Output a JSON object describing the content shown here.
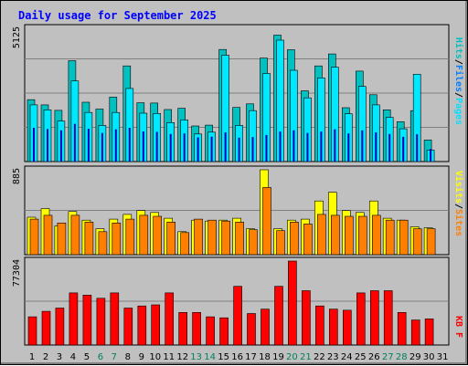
{
  "chart_data": {
    "type": "bar",
    "title": "Daily usage for September 2025",
    "days": [
      "1",
      "2",
      "3",
      "4",
      "5",
      "6",
      "7",
      "8",
      "9",
      "10",
      "11",
      "12",
      "13",
      "14",
      "15",
      "16",
      "17",
      "18",
      "19",
      "20",
      "21",
      "22",
      "23",
      "24",
      "25",
      "26",
      "27",
      "28",
      "29",
      "30",
      "31"
    ],
    "weekend_days": [
      "6",
      "7",
      "13",
      "14",
      "20",
      "21",
      "27",
      "28"
    ],
    "panels": [
      {
        "id": "hits-files-pages",
        "ymax_label": "5125",
        "ymax": 5125,
        "series": [
          {
            "name": "Hits",
            "color": "#00c0c0",
            "values": [
              2380,
              2180,
              1970,
              3880,
              2280,
              2020,
              2480,
              3680,
              2260,
              2250,
              2000,
              2050,
              1370,
              1400,
              4310,
              2080,
              2220,
              3980,
              4860,
              4300,
              2720,
              3680,
              4140,
              2070,
              3480,
              2570,
              1990,
              1530,
              1960,
              830,
              0
            ]
          },
          {
            "name": "Files",
            "color": "#00e8ff",
            "values": [
              2180,
              1990,
              1560,
              3100,
              1890,
              1390,
              1890,
              2810,
              1860,
              1850,
              1500,
              1600,
              1060,
              1130,
              4090,
              1390,
              1960,
              3390,
              4670,
              3510,
              2450,
              3220,
              3630,
              1840,
              2890,
              2180,
              1700,
              1260,
              3360,
              440,
              0
            ]
          },
          {
            "name": "Pages",
            "color": "#0000c0",
            "values": [
              1300,
              1250,
              1200,
              1450,
              1260,
              1100,
              1240,
              1300,
              1160,
              1140,
              1060,
              1080,
              930,
              960,
              1120,
              920,
              940,
              1020,
              1150,
              1200,
              1100,
              1150,
              1240,
              1080,
              1200,
              1120,
              1060,
              950,
              1050,
              480,
              0
            ]
          }
        ],
        "outline_color": "#008060"
      },
      {
        "id": "sites-visits",
        "ymax_label": "885",
        "ymax": 885,
        "series": [
          {
            "name": "Visits",
            "color": "#ffff00",
            "values": [
              390,
              480,
              300,
              450,
              360,
              270,
              370,
              420,
              460,
              440,
              380,
              240,
              360,
              350,
              360,
              380,
              270,
              885,
              270,
              360,
              370,
              560,
              650,
              460,
              440,
              560,
              380,
              360,
              290,
              280,
              0
            ]
          },
          {
            "name": "Sites",
            "color": "#ff8000",
            "values": [
              370,
              410,
              330,
              410,
              340,
              240,
              330,
              370,
              410,
              400,
              340,
              230,
              370,
              360,
              350,
              340,
              260,
              700,
              250,
              340,
              320,
              420,
              410,
              400,
              400,
              410,
              360,
              360,
              270,
              270,
              0
            ]
          }
        ]
      },
      {
        "id": "kbytes",
        "ymax_label": "77304",
        "ymax": 77304,
        "series": [
          {
            "name": "KB F",
            "color": "#ff0000",
            "values": [
              26000,
              31000,
              34000,
              48000,
              46000,
              43000,
              48000,
              34000,
              36000,
              37000,
              48000,
              30000,
              30000,
              26000,
              25000,
              54000,
              29000,
              33000,
              54000,
              77304,
              50000,
              36000,
              33000,
              32000,
              48000,
              50000,
              50000,
              30000,
              23000,
              24000,
              0
            ]
          }
        ]
      }
    ],
    "right_labels": {
      "top": [
        {
          "text": "Hits",
          "color": "#00c0c0"
        },
        {
          "text": "/",
          "color": "#000000"
        },
        {
          "text": "Files",
          "color": "#0080ff"
        },
        {
          "text": "/",
          "color": "#000000"
        },
        {
          "text": "Pages",
          "color": "#00e0ff"
        }
      ],
      "middle": [
        {
          "text": "Visits",
          "color": "#ffff00"
        },
        {
          "text": "/",
          "color": "#000000"
        },
        {
          "text": "Sites",
          "color": "#ff8000"
        }
      ],
      "bottom": [
        {
          "text": "KB F",
          "color": "#ff0000"
        }
      ]
    },
    "colors": {
      "title": "#0000ff",
      "weekday_label": "#000000",
      "weekend_label": "#008060",
      "plot_bg": "#c0c0c0",
      "grid": "#808080"
    }
  }
}
